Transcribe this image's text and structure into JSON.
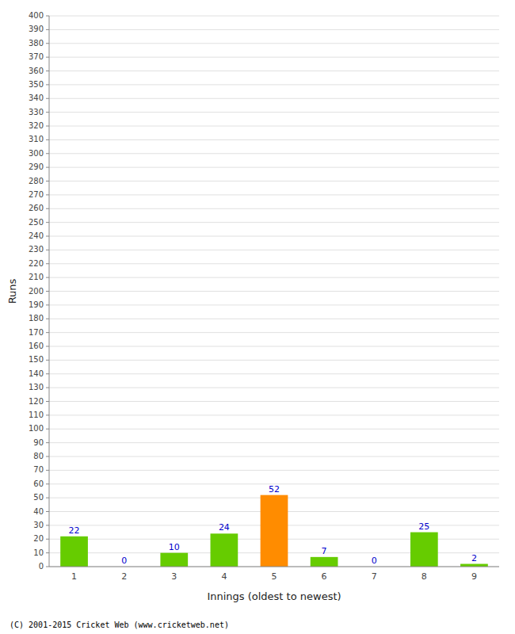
{
  "chart_data": {
    "type": "bar",
    "xlabel": "Innings (oldest to newest)",
    "ylabel": "Runs",
    "categories": [
      "1",
      "2",
      "3",
      "4",
      "5",
      "6",
      "7",
      "8",
      "9"
    ],
    "values": [
      22,
      0,
      10,
      24,
      52,
      7,
      0,
      25,
      2
    ],
    "colors": [
      "#66cc00",
      "#66cc00",
      "#66cc00",
      "#66cc00",
      "#ff8c00",
      "#66cc00",
      "#66cc00",
      "#66cc00",
      "#66cc00"
    ],
    "label_color": "#0000cc",
    "data_labels": true,
    "ylim": [
      0,
      400
    ],
    "yticks": [
      0,
      10,
      20,
      30,
      40,
      50,
      60,
      70,
      80,
      90,
      100,
      110,
      120,
      130,
      140,
      150,
      160,
      170,
      180,
      190,
      200,
      210,
      220,
      230,
      240,
      250,
      260,
      270,
      280,
      290,
      300,
      310,
      320,
      330,
      340,
      350,
      360,
      370,
      380,
      390,
      400
    ],
    "grid": true,
    "footer": "(C) 2001-2015 Cricket Web (www.cricketweb.net)"
  }
}
